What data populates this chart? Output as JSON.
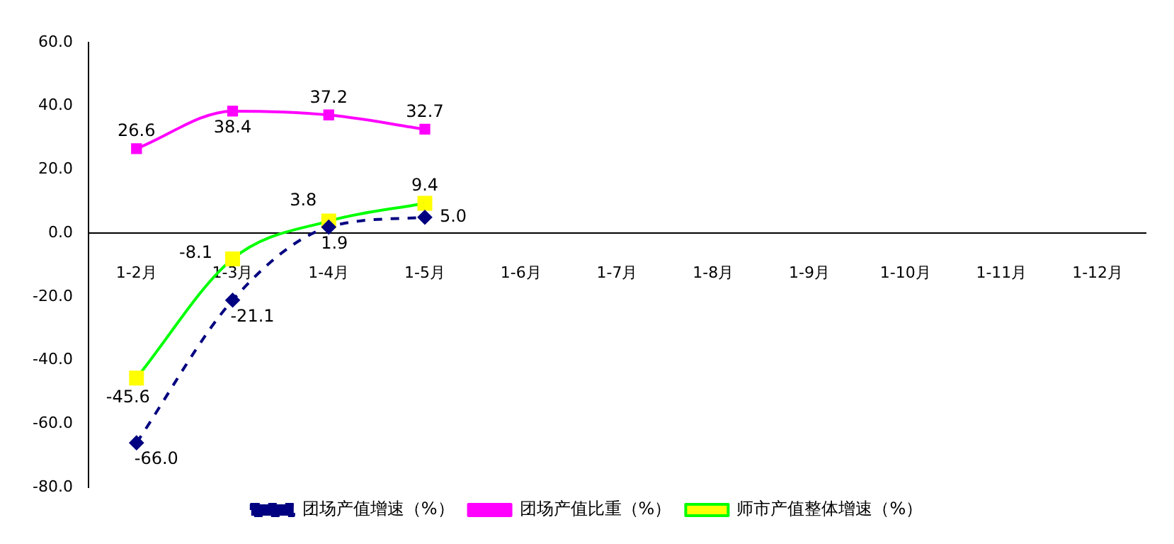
{
  "chart_data": {
    "type": "line",
    "categories": [
      "1-2月",
      "1-3月",
      "1-4月",
      "1-5月",
      "1-6月",
      "1-7月",
      "1-8月",
      "1-9月",
      "1-10月",
      "1-11月",
      "1-12月"
    ],
    "series": [
      {
        "name": "团场产值增速（%）",
        "color": "#000080",
        "values": [
          -66.0,
          -21.1,
          1.9,
          5.0,
          null,
          null,
          null,
          null,
          null,
          null,
          null
        ],
        "value_labels": [
          "-66.0",
          "-21.1",
          "1.9",
          "5.0",
          null,
          null,
          null,
          null,
          null,
          null,
          null
        ],
        "marker": "diamond",
        "line_style": "dashed"
      },
      {
        "name": "团场产值比重（%）",
        "color": "#ff00ff",
        "values": [
          26.6,
          38.4,
          37.2,
          32.7,
          null,
          null,
          null,
          null,
          null,
          null,
          null
        ],
        "value_labels": [
          "26.6",
          "38.4",
          "37.2",
          "32.7",
          null,
          null,
          null,
          null,
          null,
          null,
          null
        ],
        "marker": "square",
        "line_style": "solid"
      },
      {
        "name": "师市产值整体增速（%）",
        "color": "#00ff00",
        "colors": [
          "#ffff00",
          "#ffff00",
          "#ffff00",
          "#ffff00",
          null,
          null,
          null,
          null,
          null,
          null,
          null
        ],
        "values": [
          -45.6,
          -8.1,
          3.8,
          9.4,
          null,
          null,
          null,
          null,
          null,
          null,
          null
        ],
        "value_labels": [
          "-45.6",
          "-8.1",
          "3.8",
          "9.4",
          null,
          null,
          null,
          null,
          null,
          null,
          null
        ],
        "marker": "square",
        "line_style": "solid"
      }
    ],
    "ylim": [
      -80,
      60
    ],
    "yticks": [
      {
        "value": -80,
        "label": "-80.0"
      },
      {
        "value": -60,
        "label": "-60.0"
      },
      {
        "value": -40,
        "label": "-40.0"
      },
      {
        "value": -20,
        "label": "-20.0"
      },
      {
        "value": 0,
        "label": "0.0"
      },
      {
        "value": 20,
        "label": "20.0"
      },
      {
        "value": 40,
        "label": "40.0"
      },
      {
        "value": 60,
        "label": "60.0"
      }
    ],
    "grid": false,
    "legend": "bottom"
  }
}
